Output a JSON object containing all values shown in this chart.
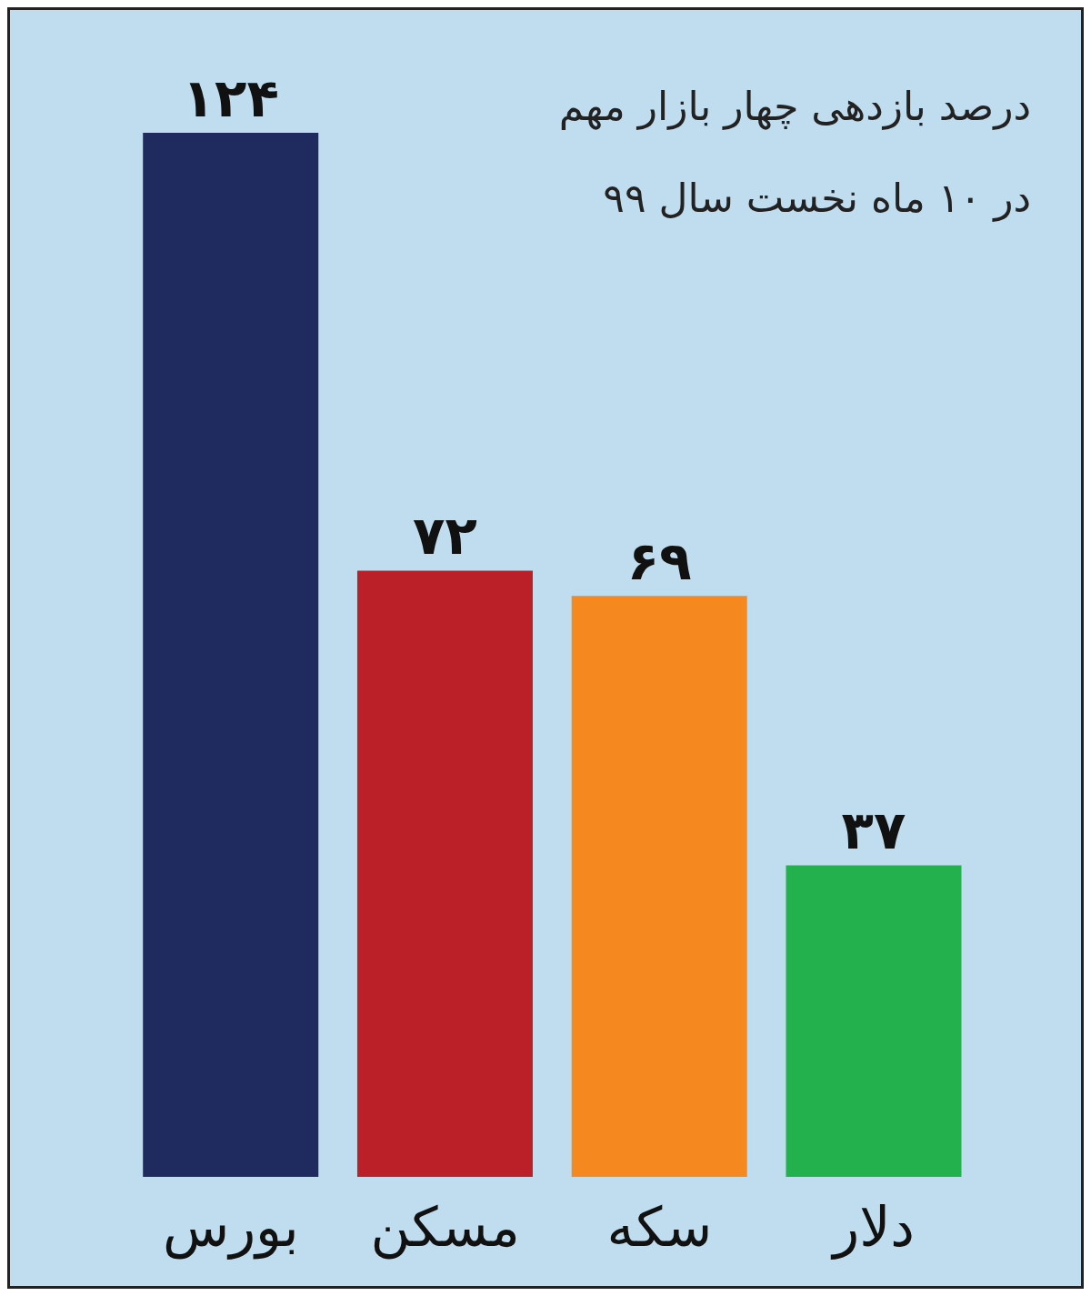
{
  "chart_data": {
    "type": "bar",
    "title": "درصد بازدهی چهار بازار مهم",
    "subtitle": "در ۱۰ ماه نخست سال ۹۹",
    "categories": [
      "بورس",
      "مسکن",
      "سکه",
      "دلار"
    ],
    "values": [
      124,
      72,
      69,
      37
    ],
    "colors": [
      "#1f2a5e",
      "#bb1f28",
      "#f5881f",
      "#22b14c"
    ],
    "value_labels": [
      "۱۲۴",
      "۷۲",
      "۶۹",
      "۳۷"
    ]
  }
}
